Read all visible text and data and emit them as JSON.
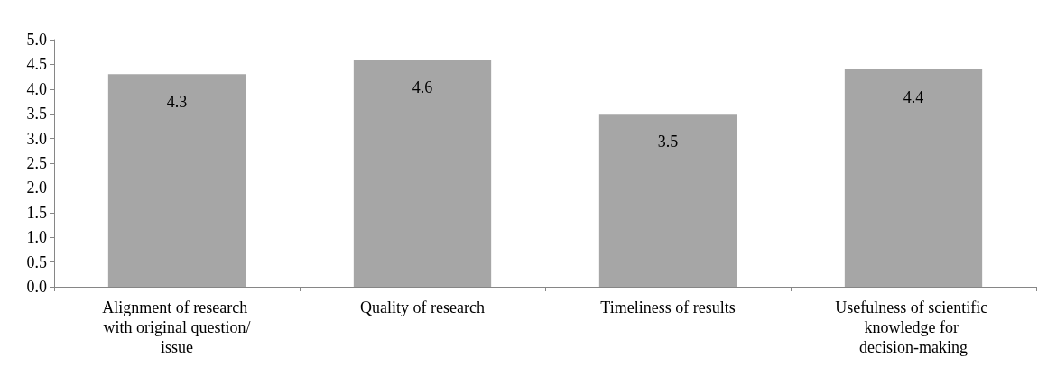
{
  "chart_data": {
    "type": "bar",
    "categories": [
      "Alignment of research with original question/issue",
      "Quality of research",
      "Timeliness of results",
      "Usefulness of scientific knowledge for decision-making"
    ],
    "values": [
      4.3,
      4.6,
      3.5,
      4.4
    ],
    "color": "#a6a6a6",
    "data_labels": true,
    "ylim": [
      0,
      5
    ],
    "yticks": [
      {
        "value": 0,
        "label": "0.0"
      },
      {
        "value": 0.5,
        "label": "0.5"
      },
      {
        "value": 1,
        "label": "1.0"
      },
      {
        "value": 1.5,
        "label": "1.5"
      },
      {
        "value": 2,
        "label": "2.0"
      },
      {
        "value": 2.5,
        "label": "2.5"
      },
      {
        "value": 3,
        "label": "3.0"
      },
      {
        "value": 3.5,
        "label": "3.5"
      },
      {
        "value": 4,
        "label": "4.0"
      },
      {
        "value": 4.5,
        "label": "4.5"
      },
      {
        "value": 5,
        "label": "5.0"
      }
    ],
    "grid": false
  }
}
